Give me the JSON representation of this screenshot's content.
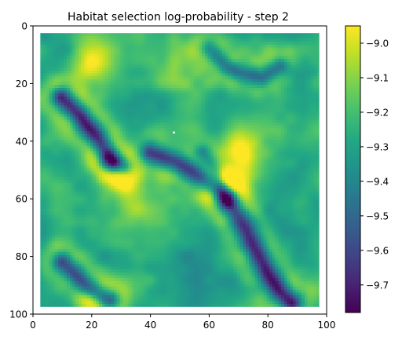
{
  "chart_data": {
    "type": "heatmap",
    "title": "Habitat selection log-probability - step 2",
    "xlabel": "",
    "ylabel": "",
    "xlim": [
      0,
      100
    ],
    "ylim": [
      100,
      0
    ],
    "x_ticks": [
      0,
      20,
      40,
      60,
      80,
      100
    ],
    "y_ticks": [
      0,
      20,
      40,
      60,
      80,
      100
    ],
    "data_extent": [
      2.5,
      97.5,
      2.5,
      97.5
    ],
    "padding_value": "none",
    "grid": false,
    "colormap": "viridis",
    "colorbar": {
      "vmin": -9.78,
      "vmax": -8.95,
      "ticks": [
        -9.0,
        -9.1,
        -9.2,
        -9.3,
        -9.4,
        -9.5,
        -9.6,
        -9.7
      ],
      "tick_labels": [
        "−9.0",
        "−9.1",
        "−9.2",
        "−9.3",
        "−9.4",
        "−9.5",
        "−9.6",
        "−9.7"
      ]
    },
    "marker": {
      "x": 48,
      "y": 37,
      "color": "#ffffff"
    },
    "base_value": -9.28,
    "features": [
      {
        "kind": "ridge",
        "points": [
          [
            10,
            25
          ],
          [
            16,
            31
          ],
          [
            22,
            39
          ],
          [
            27,
            47
          ]
        ],
        "width": 2.2,
        "depth": -0.42
      },
      {
        "kind": "ridge",
        "points": [
          [
            26,
            46
          ],
          [
            31,
            49
          ]
        ],
        "width": 2.0,
        "depth": -0.22
      },
      {
        "kind": "ridge",
        "points": [
          [
            40,
            44
          ],
          [
            48,
            47
          ],
          [
            55,
            51
          ],
          [
            62,
            56
          ],
          [
            66,
            60
          ]
        ],
        "width": 2.0,
        "depth": -0.3
      },
      {
        "kind": "ridge",
        "points": [
          [
            66,
            60
          ],
          [
            70,
            66
          ],
          [
            74,
            74
          ],
          [
            77,
            80
          ],
          [
            80,
            86
          ],
          [
            84,
            92
          ],
          [
            88,
            96
          ]
        ],
        "width": 2.4,
        "depth": -0.42
      },
      {
        "kind": "ridge",
        "points": [
          [
            10,
            82
          ],
          [
            14,
            86
          ],
          [
            18,
            90
          ],
          [
            22,
            93
          ],
          [
            26,
            95
          ]
        ],
        "width": 2.0,
        "depth": -0.32
      },
      {
        "kind": "ridge",
        "points": [
          [
            60,
            8
          ],
          [
            66,
            14
          ],
          [
            70,
            16
          ],
          [
            78,
            18
          ],
          [
            84,
            14
          ]
        ],
        "width": 1.8,
        "depth": -0.22
      },
      {
        "kind": "ridge",
        "points": [
          [
            58,
            44
          ],
          [
            62,
            50
          ],
          [
            64,
            56
          ]
        ],
        "width": 1.6,
        "depth": -0.15
      },
      {
        "kind": "blob",
        "center": [
          22,
          11
        ],
        "radius": 5.5,
        "amp": 0.2
      },
      {
        "kind": "blob",
        "center": [
          18,
          15
        ],
        "radius": 4.0,
        "amp": 0.12
      },
      {
        "kind": "blob",
        "center": [
          30,
          55
        ],
        "radius": 5.0,
        "amp": 0.24
      },
      {
        "kind": "blob",
        "center": [
          72,
          46
        ],
        "radius": 6.0,
        "amp": 0.22
      },
      {
        "kind": "blob",
        "center": [
          68,
          40
        ],
        "radius": 5.0,
        "amp": 0.16
      },
      {
        "kind": "blob",
        "center": [
          52,
          20
        ],
        "radius": 7.0,
        "amp": 0.1
      },
      {
        "kind": "blob",
        "center": [
          35,
          66
        ],
        "radius": 6.0,
        "amp": 0.1
      },
      {
        "kind": "blob",
        "center": [
          92,
          40
        ],
        "radius": 6.0,
        "amp": 0.1
      },
      {
        "kind": "blob",
        "center": [
          20,
          95
        ],
        "radius": 3.0,
        "amp": 0.24
      },
      {
        "kind": "blob",
        "center": [
          8,
          38
        ],
        "radius": 4.0,
        "amp": 0.1
      },
      {
        "kind": "blob",
        "center": [
          80,
          65
        ],
        "radius": 6.0,
        "amp": -0.1
      },
      {
        "kind": "blob",
        "center": [
          55,
          80
        ],
        "radius": 8.0,
        "amp": -0.05
      },
      {
        "kind": "blob",
        "center": [
          48,
          8
        ],
        "radius": 6.0,
        "amp": 0.08
      }
    ]
  }
}
